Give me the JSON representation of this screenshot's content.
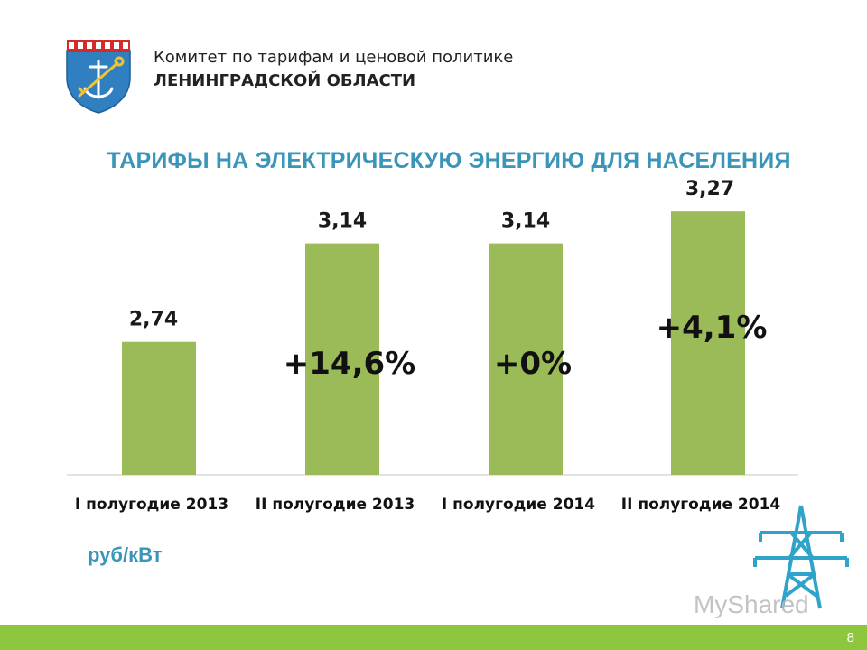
{
  "header": {
    "org_line1": "Комитет по тарифам и ценовой политике",
    "org_line2": "ЛЕНИНГРАДСКОЙ ОБЛАСТИ"
  },
  "chart_data": {
    "type": "bar",
    "title": "ТАРИФЫ НА ЭЛЕКТРИЧЕСКУЮ ЭНЕРГИЮ ДЛЯ НАСЕЛЕНИЯ",
    "categories": [
      "I полугодие 2013",
      "II полугодие 2013",
      "I полугодие 2014",
      "II полугодие 2014"
    ],
    "values": [
      2.74,
      3.14,
      3.14,
      3.27
    ],
    "value_labels": [
      "2,74",
      "3,14",
      "3,14",
      "3,27"
    ],
    "change_labels": [
      "",
      "+14,6%",
      "+0%",
      "+4,1%"
    ],
    "unit": "руб/кВт",
    "bar_color": "#9bbb59",
    "ylim": [
      2.2,
      3.3
    ],
    "grid": false
  },
  "footer": {
    "page_number": "8",
    "bar_color": "#8dc63f"
  },
  "watermark": "MyShared",
  "icons": {
    "logo": "coat-of-arms-icon",
    "tower": "power-tower-icon"
  }
}
